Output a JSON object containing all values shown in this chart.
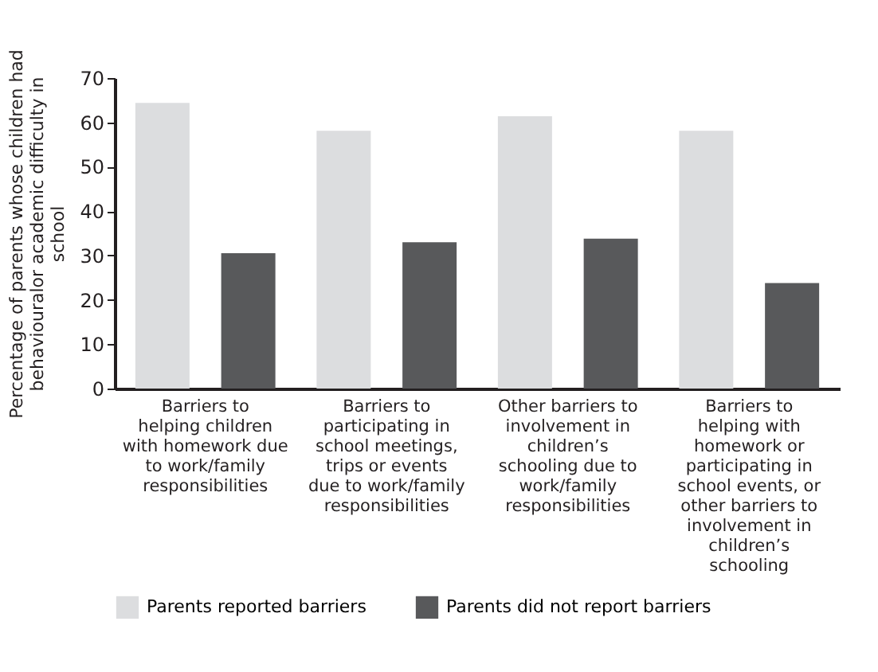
{
  "chart_data": {
    "type": "bar",
    "ylabel": "Percentage of parents whose children had behaviouralor academic difficulty in school",
    "categories": [
      "Barriers to helping children with homework due to work/family responsibilities",
      "Barriers to participating in school meetings, trips or events due to work/family responsibilities",
      "Other barriers to involvement in children’s schooling due to work/family responsibilities",
      "Barriers to helping with homework or participating in school events, or other barriers to involvement in children’s schooling"
    ],
    "series": [
      {
        "name": "Parents reported barriers",
        "color": "#dcdddf",
        "values": [
          64.4,
          58.1,
          61.4,
          58.1
        ]
      },
      {
        "name": "Parents did not report barriers",
        "color": "#58595b",
        "values": [
          30.5,
          33.0,
          33.8,
          23.8
        ]
      }
    ],
    "ylim": [
      0,
      70
    ],
    "yticks": [
      0,
      10,
      20,
      30,
      40,
      50,
      60,
      70
    ],
    "grid": false,
    "legend": "bottom"
  }
}
